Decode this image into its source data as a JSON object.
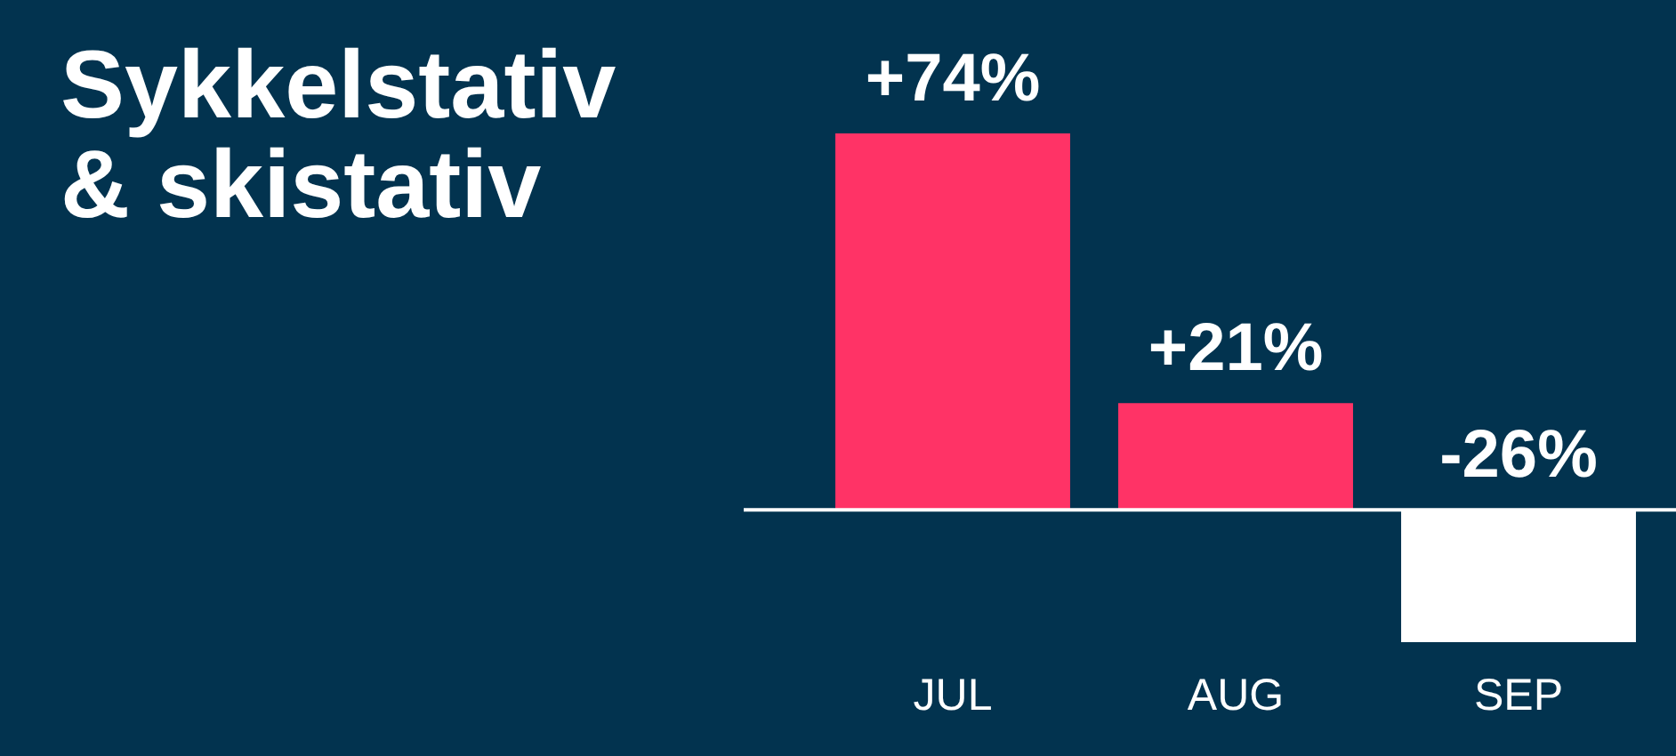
{
  "chart_data": {
    "type": "bar",
    "title": "Sykkelstativ & skistativ",
    "categories": [
      "JUL",
      "AUG",
      "SEP"
    ],
    "values": [
      74,
      21,
      -26
    ],
    "colors": [
      "#ff3366",
      "#ff3366",
      "#ffffff"
    ],
    "value_labels": [
      "+74%",
      "+21%",
      "-26%"
    ],
    "grid": false,
    "legend": false
  }
}
